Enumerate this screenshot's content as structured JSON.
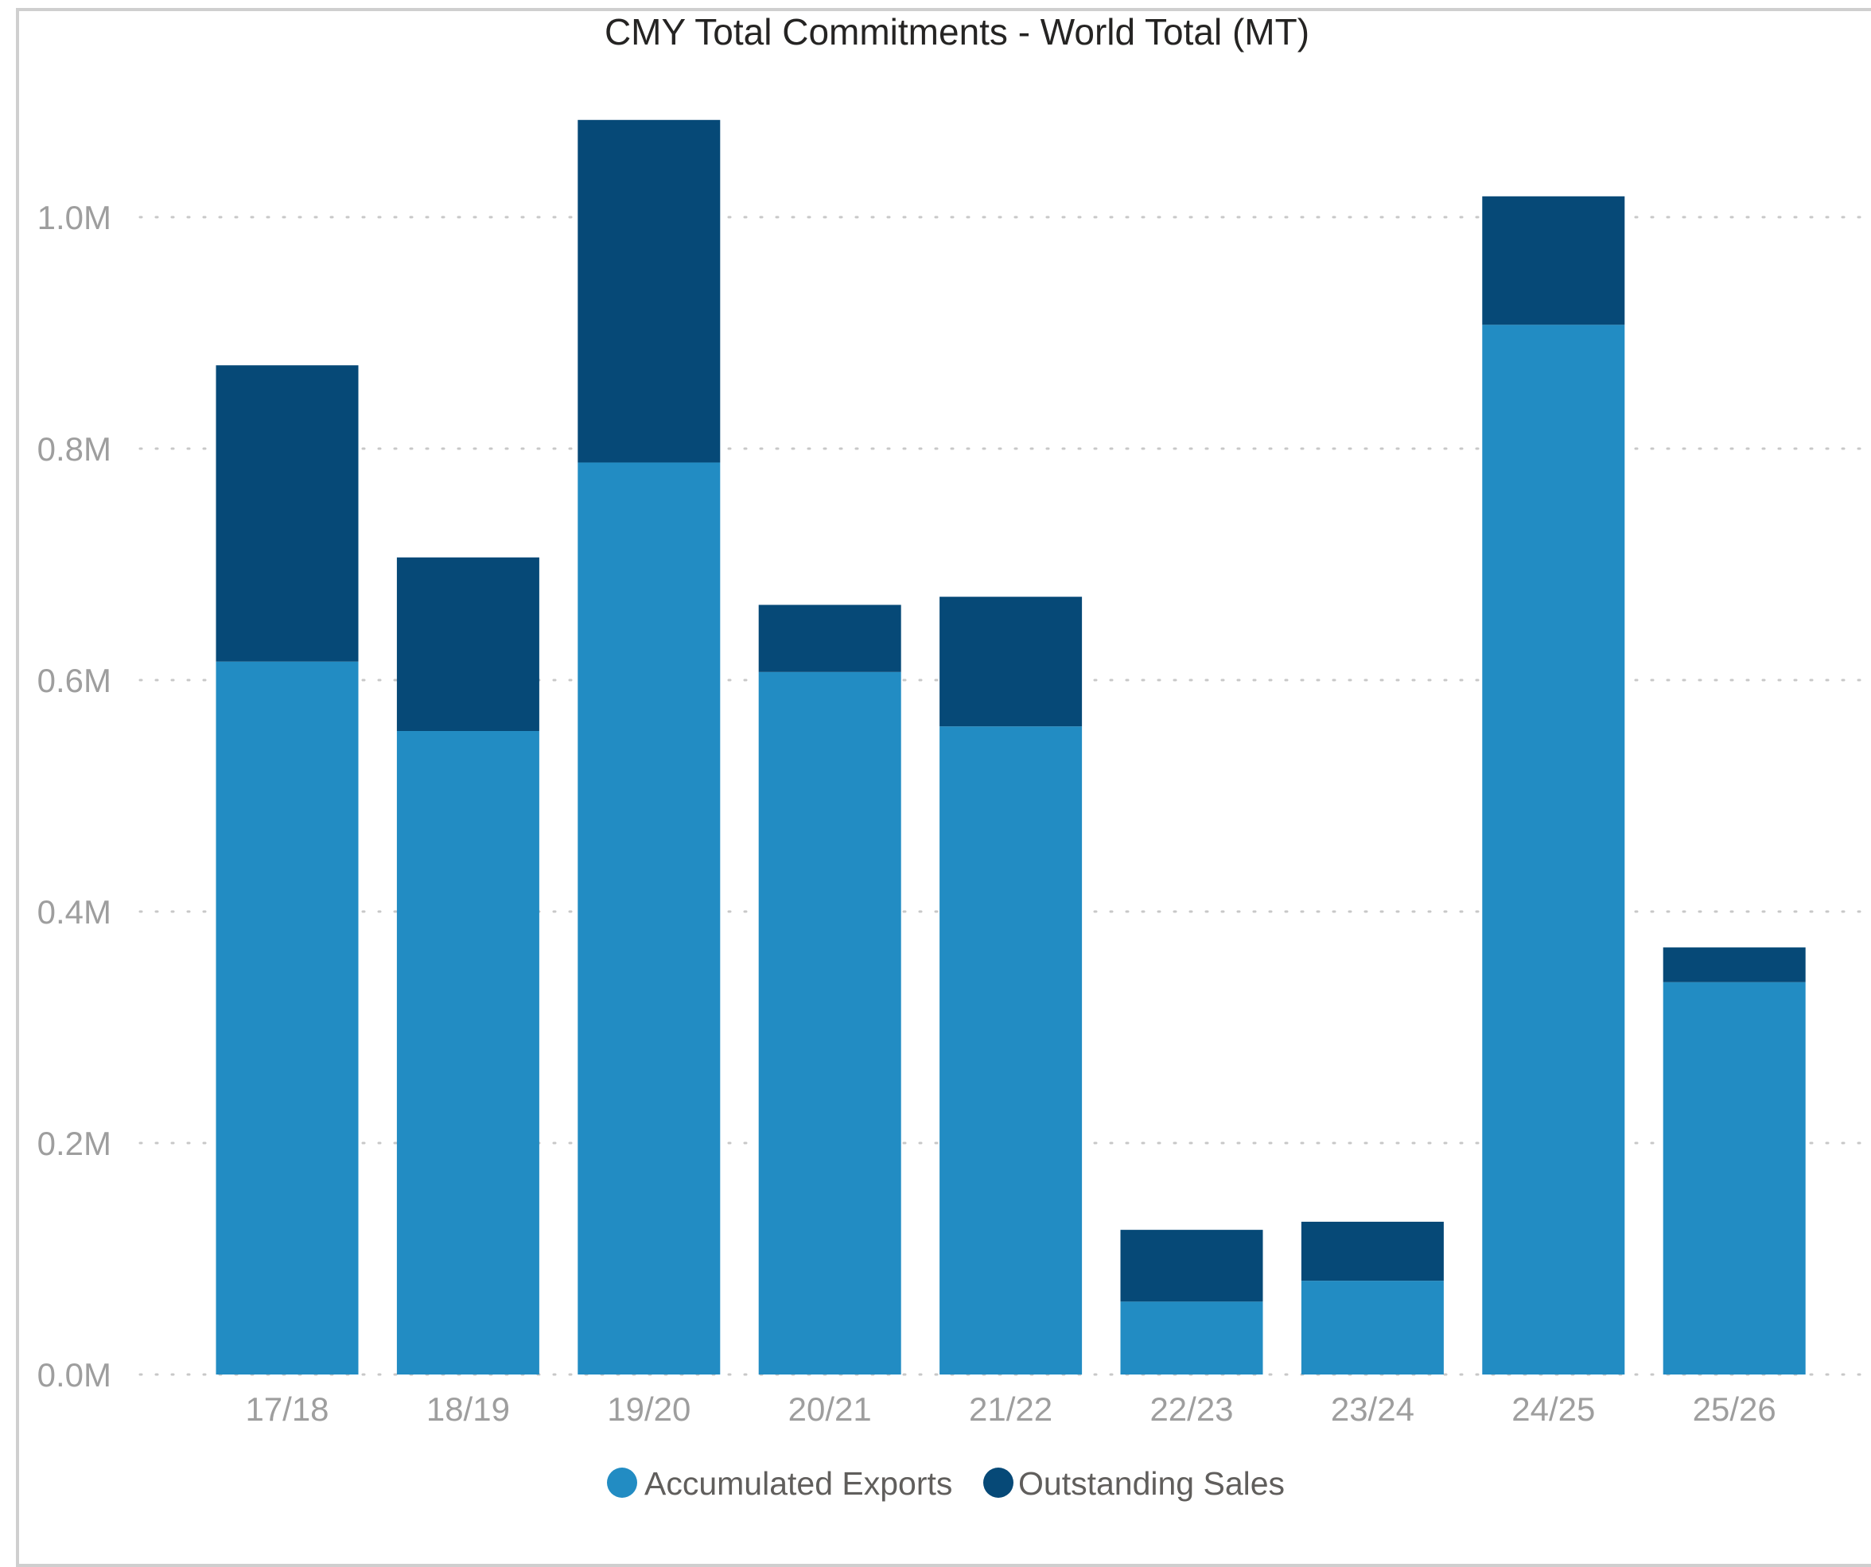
{
  "chart_data": {
    "type": "bar",
    "stacked": true,
    "title": "CMY Total Commitments - World Total (MT)",
    "xlabel": "",
    "ylabel": "",
    "categories": [
      "17/18",
      "18/19",
      "19/20",
      "20/21",
      "21/22",
      "22/23",
      "23/24",
      "24/25",
      "25/26"
    ],
    "series": [
      {
        "name": "Accumulated Exports",
        "color": "#228cc3",
        "values": [
          616000,
          556000,
          788000,
          607000,
          560000,
          63000,
          81000,
          907000,
          339000
        ]
      },
      {
        "name": "Outstanding Sales",
        "color": "#064977",
        "values": [
          256000,
          150000,
          296000,
          58000,
          112000,
          62000,
          51000,
          111000,
          30000
        ]
      }
    ],
    "ylim": [
      0,
      1084000
    ],
    "y_ticks": [
      {
        "value": 0,
        "label": "0.0M"
      },
      {
        "value": 200000,
        "label": "0.2M"
      },
      {
        "value": 400000,
        "label": "0.4M"
      },
      {
        "value": 600000,
        "label": "0.6M"
      },
      {
        "value": 800000,
        "label": "0.8M"
      },
      {
        "value": 1000000,
        "label": "1.0M"
      }
    ],
    "grid": true,
    "legend_position": "bottom-center"
  }
}
